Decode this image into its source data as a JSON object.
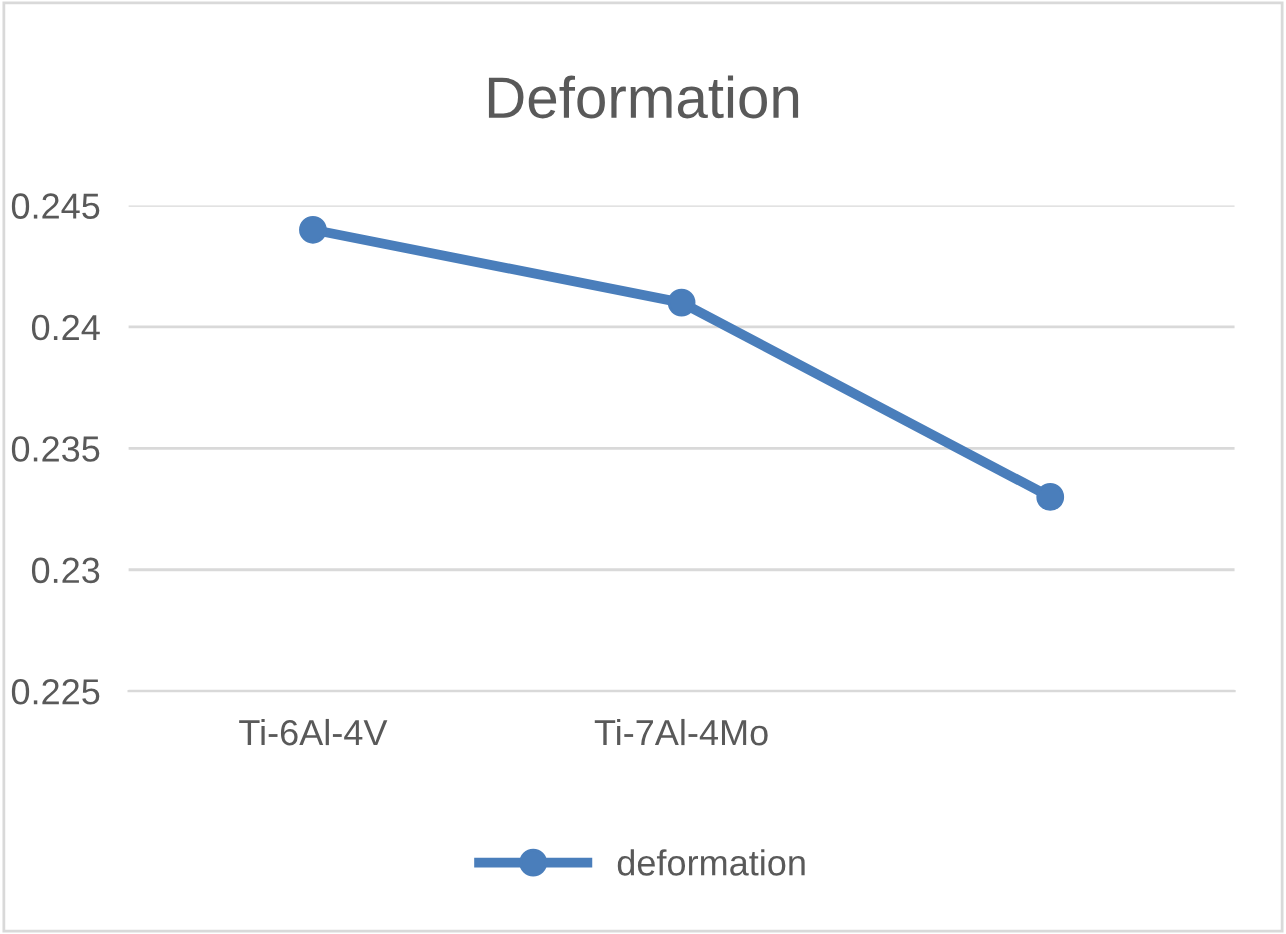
{
  "chart_data": {
    "type": "line",
    "title": "Deformation",
    "categories": [
      "Ti-6Al-4V",
      "Ti-7Al-4Mo",
      null
    ],
    "series": [
      {
        "name": "deformation",
        "color": "#4a7ebb",
        "values": [
          0.244,
          0.241,
          0.233
        ]
      }
    ],
    "ylim": [
      0.225,
      0.245
    ],
    "yticks": [
      0.225,
      0.23,
      0.235,
      0.24,
      0.245
    ],
    "grid": "y",
    "legend": "bottom",
    "marker": "circle",
    "line_style": "solid"
  }
}
